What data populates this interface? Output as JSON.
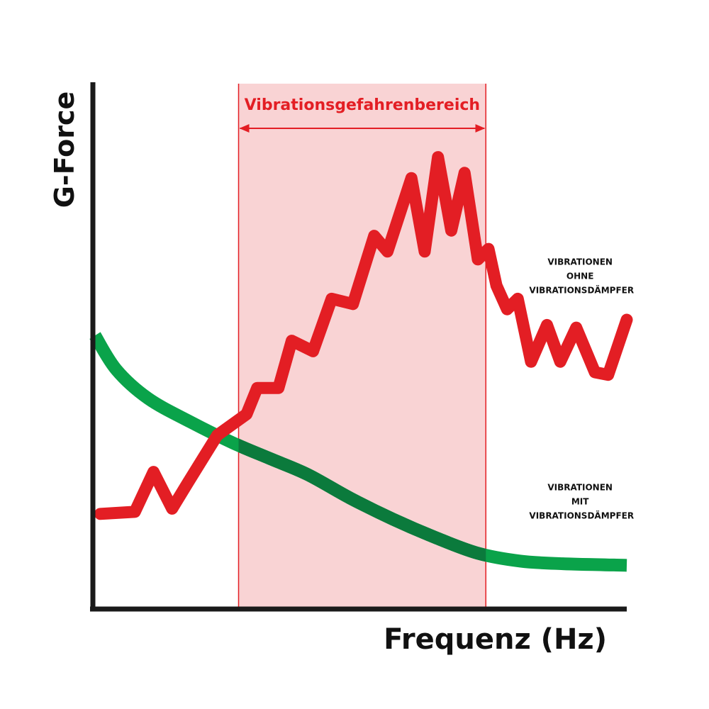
{
  "chart_data": {
    "type": "line",
    "xlabel": "Frequenz (Hz)",
    "ylabel": "G-Force",
    "xlim": [
      0,
      100
    ],
    "ylim": [
      0,
      100
    ],
    "grid": false,
    "legend": "none",
    "band": {
      "label": "Vibrationsgefahrenbereich",
      "x_start": 27,
      "x_end": 73.5,
      "color": "#f9d3d4",
      "line_color": "#e31e24"
    },
    "series": [
      {
        "label_lines": [
          "VIBRATIONEN",
          "OHNE",
          "VIBRATIONSDÄMPFER"
        ],
        "color": "#e31e24",
        "points": [
          [
            1,
            18
          ],
          [
            7.5,
            18.4
          ],
          [
            11,
            26
          ],
          [
            14.5,
            19
          ],
          [
            17.5,
            24
          ],
          [
            23,
            33
          ],
          [
            28.5,
            37
          ],
          [
            30.5,
            42
          ],
          [
            34.5,
            42
          ],
          [
            37,
            51
          ],
          [
            41,
            49
          ],
          [
            44.5,
            59
          ],
          [
            48.5,
            58
          ],
          [
            52.5,
            71
          ],
          [
            55,
            68
          ],
          [
            59.5,
            82
          ],
          [
            62,
            68
          ],
          [
            64.5,
            86
          ],
          [
            67,
            72
          ],
          [
            69.5,
            83
          ],
          [
            72,
            66.5
          ],
          [
            74,
            68.5
          ],
          [
            75.5,
            61.5
          ],
          [
            77.5,
            57
          ],
          [
            79.5,
            59
          ],
          [
            82,
            47
          ],
          [
            85,
            54
          ],
          [
            87.5,
            47
          ],
          [
            90.5,
            53.5
          ],
          [
            94,
            45
          ],
          [
            96.5,
            44.5
          ],
          [
            100,
            55
          ]
        ],
        "label_x": 91.5,
        "label_y": 65.5
      },
      {
        "label_lines": [
          "VIBRATIONEN",
          "MIT",
          "VIBRATIONSDÄMPFER"
        ],
        "color": "#0aa34a",
        "points": [
          [
            0,
            52
          ],
          [
            4,
            45.5
          ],
          [
            10,
            40
          ],
          [
            18,
            35.5
          ],
          [
            26,
            31.5
          ],
          [
            33,
            28.5
          ],
          [
            40,
            25.5
          ],
          [
            48,
            21
          ],
          [
            56,
            17
          ],
          [
            64,
            13.5
          ],
          [
            72,
            10.5
          ],
          [
            80,
            9
          ],
          [
            88,
            8.5
          ],
          [
            100,
            8.2
          ]
        ],
        "label_x": 91.5,
        "label_y": 22.5
      }
    ]
  }
}
